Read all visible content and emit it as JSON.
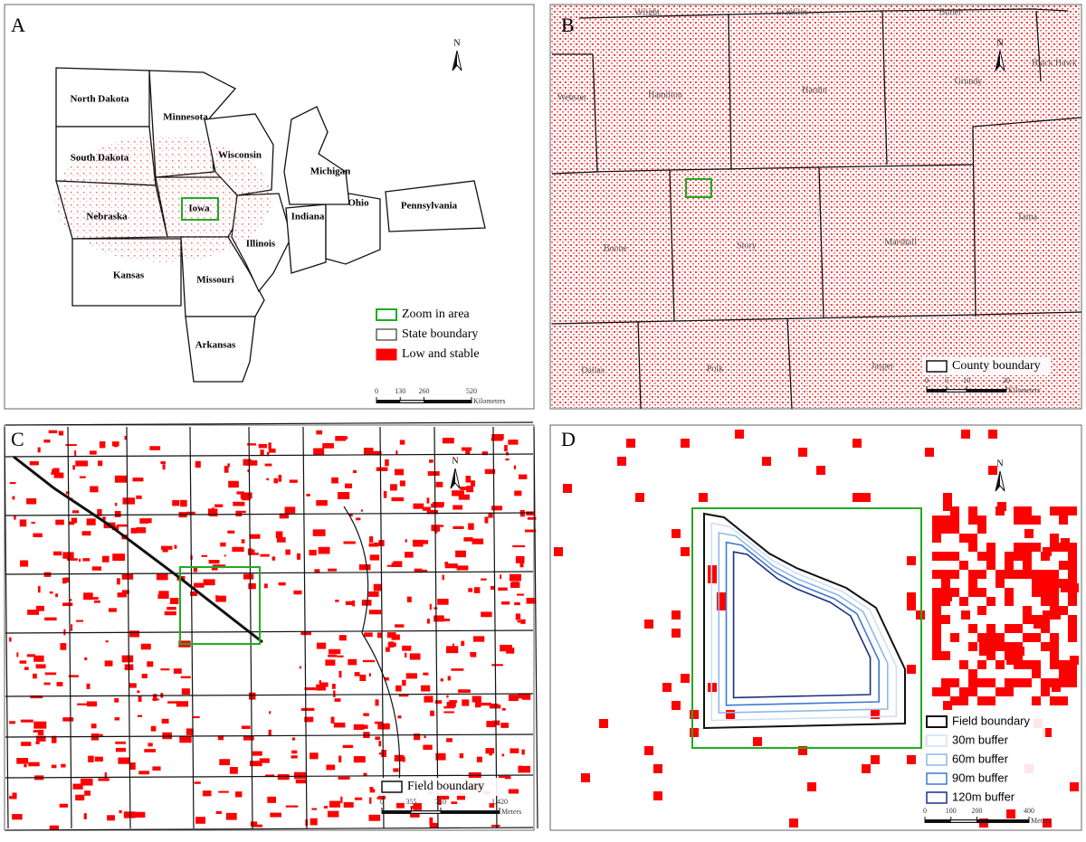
{
  "panels": [
    {
      "label": "A",
      "north": "N",
      "regions": [
        "North Dakota",
        "Minnesota",
        "South Dakota",
        "Wisconsin",
        "Michigan",
        "Nebraska",
        "Iowa",
        "Illinois",
        "Indiana",
        "Ohio",
        "Pennsylvania",
        "Kansas",
        "Missouri",
        "Arkansas"
      ],
      "legend": [
        "Zoom in area",
        "State boundary",
        "Low and stable"
      ],
      "scale": {
        "ticks": [
          0,
          130,
          260,
          520
        ],
        "unit": "Kilometers"
      }
    },
    {
      "label": "B",
      "north": "N",
      "regions": [
        "Wright",
        "Franklin",
        "Butler",
        "Webster",
        "Hamilton",
        "Hardin",
        "Grundy",
        "Black Hawk",
        "Boone",
        "Story",
        "Marshall",
        "Tama",
        "Dallas",
        "Polk",
        "Jasper"
      ],
      "legend": [
        "County boundary"
      ],
      "scale": {
        "ticks": [
          0,
          5,
          10,
          20
        ],
        "unit": "Kilometers"
      }
    },
    {
      "label": "C",
      "north": "N",
      "legend": [
        "Field boundary"
      ],
      "scale": {
        "ticks": [
          0,
          355,
          710,
          {
            "value": 1420,
            "label": "1,420"
          }
        ],
        "unit": "Meters"
      }
    },
    {
      "label": "D",
      "north": "N",
      "legend": [
        "Field boundary",
        "30m buffer",
        "60m buffer",
        "90m buffer",
        "120m buffer"
      ],
      "scale": {
        "ticks": [
          0,
          100,
          200,
          400
        ],
        "unit": "Meters"
      }
    }
  ]
}
